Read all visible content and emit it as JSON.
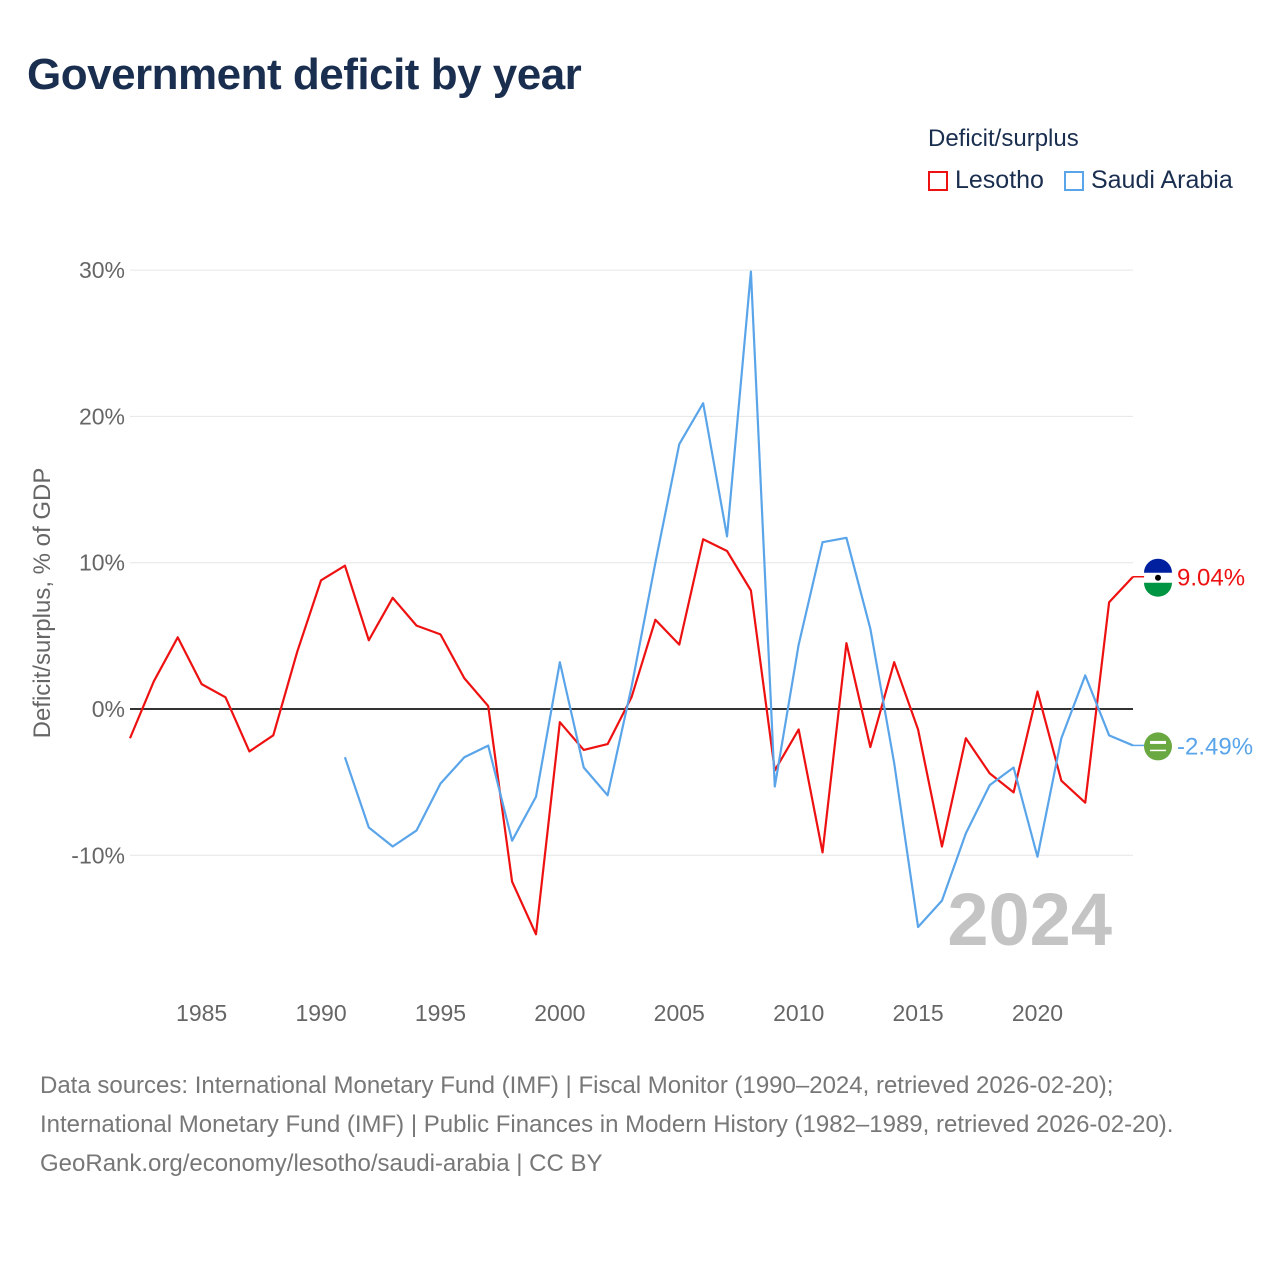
{
  "title": "Government deficit by year",
  "legend": {
    "title": "Deficit/surplus",
    "items": [
      {
        "label": "Lesotho",
        "color": "#ee1111"
      },
      {
        "label": "Saudi Arabia",
        "color": "#5aa5ea"
      }
    ]
  },
  "watermark_year": "2024",
  "footer": {
    "sources": "Data sources: International Monetary Fund (IMF) | Fiscal Monitor (1990–2024, retrieved 2026-02-20); International Monetary Fund (IMF) | Public Finances in Modern History (1982–1989, retrieved 2026-02-20).",
    "credit": "GeoRank.org/economy/lesotho/saudi-arabia | CC BY"
  },
  "chart_data": {
    "type": "line",
    "title": "Government deficit by year",
    "ylabel": "Deficit/surplus, % of GDP",
    "xlabel": "",
    "xlim": [
      1982,
      2024
    ],
    "ylim": [
      -18,
      31
    ],
    "yticks": [
      {
        "v": -10,
        "label": "-10%"
      },
      {
        "v": 0,
        "label": "0%"
      },
      {
        "v": 10,
        "label": "10%"
      },
      {
        "v": 20,
        "label": "20%"
      },
      {
        "v": 30,
        "label": "30%"
      }
    ],
    "xticks": [
      {
        "v": 1985,
        "label": "1985"
      },
      {
        "v": 1990,
        "label": "1990"
      },
      {
        "v": 1995,
        "label": "1995"
      },
      {
        "v": 2000,
        "label": "2000"
      },
      {
        "v": 2005,
        "label": "2005"
      },
      {
        "v": 2010,
        "label": "2010"
      },
      {
        "v": 2015,
        "label": "2015"
      },
      {
        "v": 2020,
        "label": "2020"
      }
    ],
    "series": [
      {
        "name": "Lesotho",
        "color": "#ee1111",
        "end_label": "9.04%",
        "start_year": 1982,
        "values": [
          -2.0,
          1.9,
          4.9,
          1.7,
          0.8,
          -2.9,
          -1.8,
          3.9,
          8.8,
          9.8,
          4.7,
          7.6,
          5.7,
          5.1,
          2.1,
          0.2,
          -11.8,
          -15.4,
          -0.9,
          -2.8,
          -2.4,
          0.8,
          6.1,
          4.4,
          11.6,
          10.8,
          8.1,
          -4.2,
          -1.4,
          -9.8,
          4.5,
          -2.6,
          3.2,
          -1.4,
          -9.4,
          -2.0,
          -4.4,
          -5.7,
          1.2,
          -4.9,
          -6.4,
          7.3,
          9.04
        ]
      },
      {
        "name": "Saudi Arabia",
        "color": "#5aa5ea",
        "end_label": "-2.49%",
        "start_year": 1991,
        "values": [
          -3.3,
          -8.1,
          -9.4,
          -8.3,
          -5.1,
          -3.3,
          -2.5,
          -9.0,
          -6.0,
          3.2,
          -4.0,
          -5.9,
          1.5,
          10.0,
          18.1,
          20.9,
          11.8,
          29.9,
          -5.3,
          4.4,
          11.4,
          11.7,
          5.5,
          -3.7,
          -14.9,
          -13.1,
          -8.5,
          -5.2,
          -4.0,
          -10.1,
          -2.0,
          2.3,
          -1.8,
          -2.49
        ]
      }
    ]
  }
}
